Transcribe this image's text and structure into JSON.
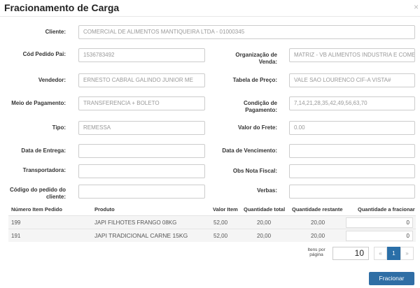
{
  "title": "Fracionamento de Carga",
  "close": "×",
  "form": {
    "cliente": {
      "label": "Cliente:",
      "value": "COMERCIAL DE ALIMENTOS MANTIQUEIRA LTDA - 01000345"
    },
    "cod_pedido_pai": {
      "label": "Cód Pedido Pai:",
      "value": "1536783492"
    },
    "organizacao": {
      "label": "Organização de Venda:",
      "value": "MATRIZ - VB ALIMENTOS INDUSTRIA E COME"
    },
    "vendedor": {
      "label": "Vendedor:",
      "value": "ERNESTO CABRAL GALINDO JUNIOR ME"
    },
    "tabela_preco": {
      "label": "Tabela de Preço:",
      "value": "VALE SAO LOURENCO CIF-A VISTA#"
    },
    "meio_pagamento": {
      "label": "Meio de Pagamento:",
      "value": "TRANSFERENCIA + BOLETO"
    },
    "condicao_pagamento": {
      "label": "Condição de Pagamento:",
      "value": "7,14,21,28,35,42,49,56,63,70"
    },
    "tipo": {
      "label": "Tipo:",
      "value": "REMESSA"
    },
    "valor_frete": {
      "label": "Valor do Frete:",
      "value": "0.00"
    },
    "data_entrega": {
      "label": "Data de Entrega:",
      "value": ""
    },
    "data_vencimento": {
      "label": "Data de Vencimento:",
      "value": ""
    },
    "transportadora": {
      "label": "Transportadora:",
      "value": ""
    },
    "obs_nota": {
      "label": "Obs Nota Fiscal:",
      "value": ""
    },
    "codigo_cliente": {
      "label": "Código do pedido do cliente:",
      "value": ""
    },
    "verbas": {
      "label": "Verbas:",
      "value": ""
    }
  },
  "table": {
    "headers": [
      "Número Item Pedido",
      "Produto",
      "Valor Item",
      "Quantidade total",
      "Quantidade restante",
      "Quantidade a fracionar"
    ],
    "rows": [
      [
        "199",
        "JAPI FILHOTES FRANGO 08KG",
        "52,00",
        "20,00",
        "20,00",
        "0"
      ],
      [
        "191",
        "JAPI TRADICIONAL CARNE 15KG",
        "52,00",
        "20,00",
        "20,00",
        "0"
      ]
    ]
  },
  "pagination": {
    "items_label": "Itens por página",
    "per_page": "10",
    "prev": "«",
    "page": "1",
    "next": "»",
    "active_color": "#2a6fa8"
  },
  "submit": "Fracionar"
}
